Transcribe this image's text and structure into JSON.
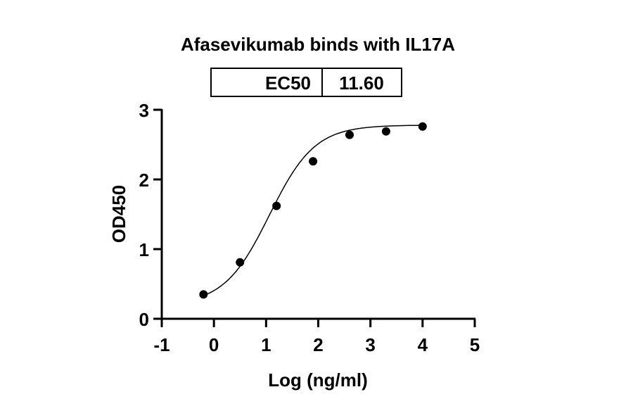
{
  "chart_data": {
    "type": "scatter",
    "title": "Afasevikumab binds with IL17A",
    "xlabel": "Log (ng/ml)",
    "ylabel": "OD450",
    "xlim": [
      -1,
      5
    ],
    "ylim": [
      0,
      3
    ],
    "xticks": [
      "-1",
      "0",
      "1",
      "2",
      "3",
      "4",
      "5"
    ],
    "yticks": [
      "0",
      "1",
      "2",
      "3"
    ],
    "grid": false,
    "fit": "sigmoidal curve",
    "legend_table": {
      "label": "EC50",
      "value": "11.60"
    },
    "series": [
      {
        "x": [
          -0.2,
          0.5,
          1.2,
          1.9,
          2.6,
          3.3,
          4.0
        ],
        "y": [
          0.35,
          0.81,
          1.62,
          2.26,
          2.64,
          2.69,
          2.76
        ]
      }
    ]
  }
}
